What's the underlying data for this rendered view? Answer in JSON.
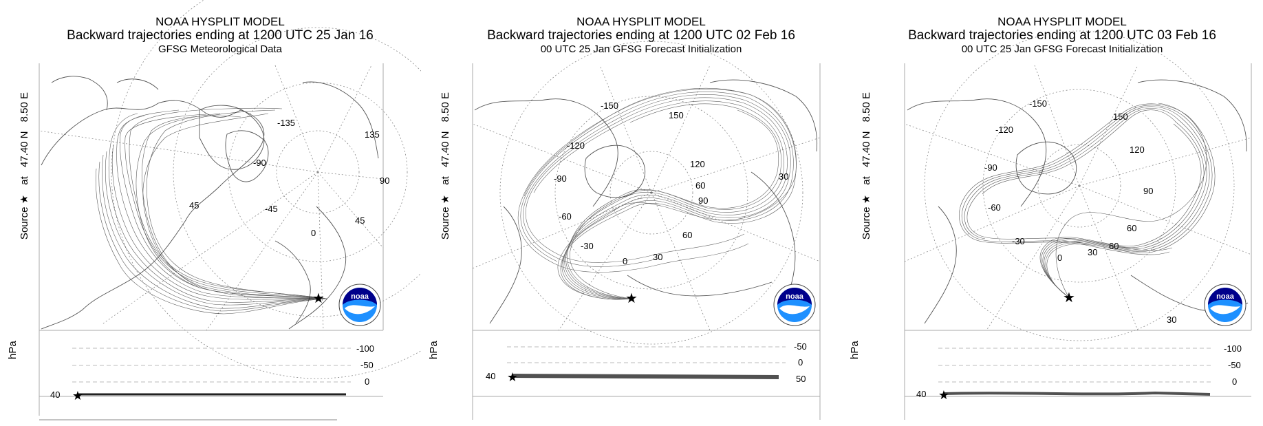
{
  "panels": [
    {
      "model": "NOAA HYSPLIT MODEL",
      "title": "Backward trajectories ending at 1200 UTC 25 Jan 16",
      "subtitle": "GFSG Meteorological Data",
      "source_prefix": "Source",
      "source_at": "at",
      "source_lat": "47.40 N",
      "source_lon": "8.50 E",
      "meridian_labels": [
        "-135",
        "135",
        "-90",
        "90",
        "45",
        "-45",
        "45",
        "0"
      ],
      "height_axis_label": "hPa",
      "height_ticks": [
        "-100",
        "-50",
        "0"
      ],
      "height_start": "40"
    },
    {
      "model": "NOAA HYSPLIT MODEL",
      "title": "Backward trajectories ending at 1200 UTC 02 Feb 16",
      "subtitle": "00 UTC 25 Jan     GFSG  Forecast Initialization",
      "source_prefix": "Source",
      "source_at": "at",
      "source_lat": "47.40 N",
      "source_lon": "8.50 E",
      "meridian_labels": [
        "-150",
        "150",
        "-120",
        "120",
        "-90",
        "60",
        "90",
        "30",
        "-60",
        "60",
        "-30",
        "0",
        "30"
      ],
      "height_axis_label": "hPa",
      "height_ticks": [
        "-50",
        "0",
        "50"
      ],
      "height_start": "40"
    },
    {
      "model": "NOAA HYSPLIT MODEL",
      "title": "Backward trajectories ending at 1200 UTC 03 Feb 16",
      "subtitle": "00 UTC 25 Jan     GFSG  Forecast Initialization",
      "source_prefix": "Source",
      "source_at": "at",
      "source_lat": "47.40 N",
      "source_lon": "8.50 E",
      "meridian_labels": [
        "-150",
        "150",
        "-120",
        "120",
        "-90",
        "90",
        "-60",
        "60",
        "-30",
        "60",
        "0",
        "30",
        "30"
      ],
      "height_axis_label": "hPa",
      "height_ticks": [
        "-100",
        "-50",
        "0"
      ],
      "height_start": "40"
    }
  ],
  "logo_text": "noaa",
  "colors": {
    "trajectory": "#222222",
    "coast": "#555555",
    "grid": "#8a8a8a",
    "logo_blue": "#1e90ff",
    "logo_navy": "#00008b"
  },
  "icons": {
    "source": "star-icon",
    "logo": "noaa-logo-icon"
  }
}
